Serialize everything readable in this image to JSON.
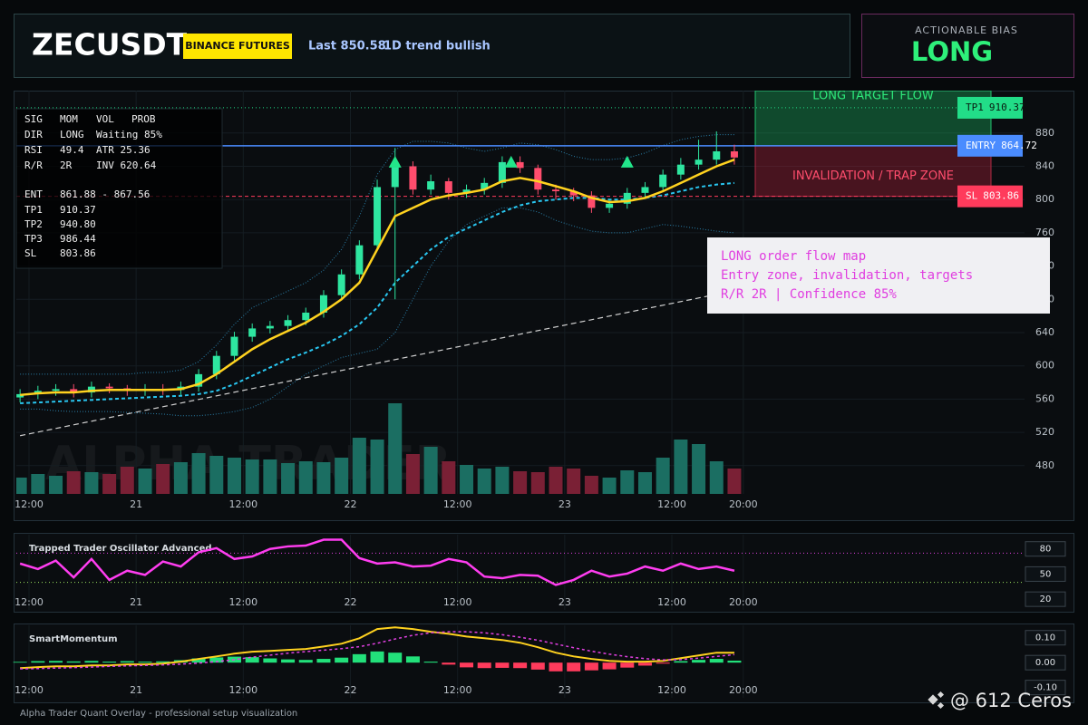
{
  "header": {
    "title": "ZECUSDT",
    "badge": "BINANCE FUTURES",
    "last": "Last 850.58",
    "trend": "1D trend bullish"
  },
  "bias": {
    "label": "ACTIONABLE BIAS",
    "value": "LONG"
  },
  "info_panel": {
    "rows": [
      [
        "SIG",
        "MOM",
        "VOL",
        "PROB"
      ],
      [
        "DIR",
        "LONG",
        "Waiting 85%"
      ],
      [
        "RSI",
        "49.4",
        "ATR 25.36"
      ],
      [
        "R/R",
        "2R",
        "INV 620.64"
      ],
      [
        "ENT",
        "861.88 - 867.56"
      ],
      [
        "TP1",
        "910.37"
      ],
      [
        "TP2",
        "940.80"
      ],
      [
        "TP3",
        "986.44"
      ],
      [
        "SL",
        "803.86"
      ]
    ]
  },
  "annotation": {
    "lines": [
      "LONG order flow map",
      "Entry zone, invalidation, targets",
      "R/R 2R | Confidence 85%"
    ]
  },
  "watermark": "ALPHA TRADER",
  "footer": "Alpha Trader Quant Overlay - professional setup visualization",
  "credit": "@ 612 Ceros",
  "chart_data": [
    {
      "type": "candlestick",
      "x": [
        11,
        13,
        15,
        17,
        19,
        21,
        23,
        25,
        27,
        29,
        31,
        33,
        35,
        37,
        39,
        41,
        43,
        45,
        47,
        49,
        51,
        53,
        55,
        57,
        59,
        61,
        63,
        65,
        67,
        69,
        71,
        73,
        75,
        77,
        79,
        81,
        83,
        85,
        87,
        89,
        91
      ],
      "open": [
        562,
        566,
        570,
        572,
        568,
        575,
        573,
        570,
        572,
        571,
        575,
        590,
        612,
        635,
        645,
        648,
        655,
        664,
        685,
        710,
        745,
        815,
        840,
        812,
        822,
        808,
        812,
        820,
        845,
        838,
        812,
        810,
        805,
        790,
        795,
        808,
        815,
        830,
        842,
        848,
        858
      ],
      "high": [
        572,
        576,
        578,
        578,
        581,
        579,
        577,
        578,
        578,
        581,
        596,
        618,
        641,
        651,
        654,
        661,
        670,
        691,
        716,
        751,
        824,
        862,
        846,
        830,
        826,
        818,
        826,
        852,
        852,
        842,
        818,
        814,
        810,
        800,
        814,
        821,
        836,
        850,
        872,
        882,
        866
      ],
      "low": [
        556,
        560,
        564,
        562,
        562,
        567,
        564,
        564,
        565,
        565,
        569,
        584,
        606,
        629,
        639,
        642,
        649,
        658,
        679,
        704,
        739,
        680,
        806,
        806,
        800,
        802,
        806,
        814,
        832,
        806,
        800,
        798,
        784,
        784,
        789,
        802,
        809,
        824,
        836,
        842,
        842
      ],
      "close": [
        566,
        570,
        572,
        568,
        575,
        573,
        570,
        572,
        571,
        575,
        590,
        612,
        635,
        645,
        648,
        655,
        664,
        685,
        710,
        745,
        815,
        840,
        812,
        822,
        808,
        812,
        820,
        845,
        838,
        812,
        810,
        805,
        790,
        795,
        808,
        815,
        830,
        842,
        848,
        858,
        850.58
      ],
      "volume": [
        18,
        22,
        20,
        25,
        24,
        22,
        30,
        28,
        33,
        35,
        45,
        42,
        40,
        38,
        38,
        34,
        36,
        35,
        40,
        62,
        60,
        100,
        44,
        52,
        36,
        32,
        28,
        30,
        25,
        24,
        30,
        28,
        20,
        18,
        26,
        24,
        40,
        60,
        55,
        36,
        28
      ],
      "volume_ylim": [
        0,
        100
      ],
      "ema": [
        565,
        567,
        568,
        568,
        570,
        571,
        571,
        571,
        571,
        572,
        578,
        590,
        605,
        620,
        632,
        642,
        652,
        665,
        680,
        700,
        740,
        780,
        790,
        800,
        805,
        808,
        812,
        822,
        826,
        822,
        816,
        810,
        802,
        797,
        798,
        802,
        810,
        820,
        830,
        840,
        848
      ],
      "slow_ma": [
        555,
        556,
        557,
        558,
        559,
        560,
        561,
        562,
        563,
        564,
        566,
        570,
        578,
        588,
        598,
        608,
        616,
        625,
        636,
        650,
        670,
        700,
        720,
        740,
        755,
        765,
        775,
        785,
        793,
        798,
        800,
        802,
        802,
        800,
        800,
        802,
        805,
        810,
        815,
        818,
        820
      ],
      "band_upper": [
        590,
        590,
        590,
        590,
        590,
        590,
        590,
        592,
        592,
        595,
        605,
        625,
        650,
        670,
        680,
        690,
        700,
        715,
        740,
        780,
        830,
        860,
        870,
        870,
        868,
        862,
        858,
        862,
        868,
        866,
        860,
        852,
        848,
        848,
        850,
        856,
        865,
        872,
        876,
        878,
        878
      ],
      "band_lower": [
        548,
        548,
        546,
        545,
        545,
        545,
        544,
        543,
        542,
        540,
        540,
        542,
        545,
        550,
        560,
        575,
        590,
        600,
        610,
        615,
        620,
        640,
        680,
        720,
        750,
        770,
        780,
        790,
        790,
        785,
        775,
        768,
        762,
        760,
        760,
        765,
        770,
        768,
        765,
        762,
        760
      ],
      "trendline": {
        "x": [
          11,
          89
        ],
        "values": [
          516,
          686
        ]
      },
      "signals": {
        "x": [
          53,
          66,
          79
        ],
        "values": [
          845,
          845,
          845
        ]
      },
      "levels": [
        {
          "label": "TP1",
          "value": 910.37,
          "color": "#22dd88"
        },
        {
          "label": "ENTRY",
          "value": 864.72,
          "color": "#4a8cff"
        },
        {
          "label": "SL",
          "value": 803.86,
          "color": "#ff3b5c"
        }
      ],
      "zones": {
        "target_label": "LONG TARGET FLOW",
        "invalidation_label": "INVALIDATION / TRAP ZONE"
      },
      "colors": {
        "up": "#2ee6a0",
        "down": "#ff4d6d",
        "volume_up": "#1b6e62",
        "volume_down": "#7a2035",
        "ema": "#ffd21f",
        "slow_ma": "#29c6f0",
        "band": "#2a7fa8",
        "trendline": "#d0d0d0",
        "signal": "#22e58a"
      },
      "xlim": [
        10.58,
        123.5
      ],
      "ylim": [
        446,
        931
      ],
      "xticks": [
        {
          "value": 12,
          "label": "12:00"
        },
        {
          "value": 24,
          "label": "21"
        },
        {
          "value": 36,
          "label": "12:00"
        },
        {
          "value": 48,
          "label": "22"
        },
        {
          "value": 60,
          "label": "12:00"
        },
        {
          "value": 72,
          "label": "23"
        },
        {
          "value": 84,
          "label": "12:00"
        },
        {
          "value": 92,
          "label": "20:00"
        }
      ],
      "yticks": [
        480,
        520,
        560,
        600,
        640,
        680,
        720,
        760,
        800,
        840,
        880
      ],
      "grid": true
    },
    {
      "type": "line",
      "title": "Trapped Trader Oscillator Advanced",
      "x": [
        11,
        13,
        15,
        17,
        19,
        21,
        23,
        25,
        27,
        29,
        31,
        33,
        35,
        37,
        39,
        41,
        43,
        45,
        47,
        49,
        51,
        53,
        55,
        57,
        59,
        61,
        63,
        65,
        67,
        69,
        71,
        73,
        75,
        77,
        79,
        81,
        83,
        85,
        87,
        89,
        91
      ],
      "values": [
        62.5,
        56,
        66,
        46,
        68,
        43,
        54,
        49,
        65,
        59,
        76,
        81,
        68,
        71,
        80,
        83,
        84,
        91,
        91,
        69,
        62.5,
        64,
        59,
        60,
        68,
        64,
        47,
        45,
        49,
        48,
        37,
        43,
        54,
        47,
        50.5,
        59,
        54,
        62.5,
        56,
        59,
        54
      ],
      "color": "#ff3df0",
      "overbought": 75,
      "oversold": 40,
      "overbought_color": "#e040e0",
      "oversold_color": "#9be15d",
      "xlim": [
        10.58,
        123.5
      ],
      "ylim": [
        18,
        97
      ],
      "xticks": [
        {
          "value": 12,
          "label": "12:00"
        },
        {
          "value": 24,
          "label": "21"
        },
        {
          "value": 36,
          "label": "12:00"
        },
        {
          "value": 48,
          "label": "22"
        },
        {
          "value": 60,
          "label": "12:00"
        },
        {
          "value": 72,
          "label": "23"
        },
        {
          "value": 84,
          "label": "12:00"
        },
        {
          "value": 92,
          "label": "20:00"
        }
      ],
      "yticks": [
        80,
        50,
        20
      ]
    },
    {
      "type": "line",
      "title": "SmartMomentum",
      "x": [
        11,
        13,
        15,
        17,
        19,
        21,
        23,
        25,
        27,
        29,
        31,
        33,
        35,
        37,
        39,
        41,
        43,
        45,
        47,
        49,
        51,
        53,
        55,
        57,
        59,
        61,
        63,
        65,
        67,
        69,
        71,
        73,
        75,
        77,
        79,
        81,
        83,
        85,
        87,
        89,
        91
      ],
      "series": [
        {
          "color": "#ffd21f",
          "values": [
            -0.022,
            -0.018,
            -0.015,
            -0.015,
            -0.011,
            -0.011,
            -0.007,
            -0.007,
            -0.004,
            0.004,
            0.015,
            0.025,
            0.036,
            0.044,
            0.047,
            0.051,
            0.055,
            0.065,
            0.076,
            0.098,
            0.135,
            0.142,
            0.135,
            0.124,
            0.116,
            0.105,
            0.098,
            0.091,
            0.08,
            0.062,
            0.04,
            0.025,
            0.015,
            0.007,
            0.004,
            0.004,
            0.007,
            0.018,
            0.029,
            0.04,
            0.04
          ]
        },
        {
          "color": "#e040e0",
          "dashed": true,
          "values": [
            -0.025,
            -0.024,
            -0.022,
            -0.02,
            -0.018,
            -0.015,
            -0.013,
            -0.011,
            -0.009,
            -0.006,
            -0.002,
            0.004,
            0.012,
            0.022,
            0.03,
            0.038,
            0.044,
            0.05,
            0.056,
            0.064,
            0.078,
            0.095,
            0.11,
            0.12,
            0.124,
            0.124,
            0.12,
            0.112,
            0.102,
            0.09,
            0.075,
            0.06,
            0.046,
            0.034,
            0.024,
            0.016,
            0.011,
            0.012,
            0.018,
            0.025,
            0.032
          ]
        }
      ],
      "histogram": {
        "values": [
          0.003,
          0.006,
          0.007,
          0.005,
          0.007,
          0.004,
          0.006,
          0.004,
          0.005,
          0.01,
          0.017,
          0.021,
          0.024,
          0.022,
          0.017,
          0.013,
          0.011,
          0.015,
          0.02,
          0.034,
          0.045,
          0.04,
          0.025,
          0.004,
          -0.008,
          -0.019,
          -0.022,
          -0.021,
          -0.022,
          -0.028,
          -0.035,
          -0.035,
          -0.031,
          -0.027,
          -0.02,
          -0.012,
          -0.004,
          0.006,
          0.011,
          0.015,
          0.008
        ],
        "up_color": "#22e07a",
        "down_color": "#ff3b5c"
      },
      "xlim": [
        10.58,
        123.5
      ],
      "ylim": [
        -0.105,
        0.15
      ],
      "xticks": [
        {
          "value": 12,
          "label": "12:00"
        },
        {
          "value": 24,
          "label": "21"
        },
        {
          "value": 36,
          "label": "12:00"
        },
        {
          "value": 48,
          "label": "22"
        },
        {
          "value": 60,
          "label": "12:00"
        },
        {
          "value": 72,
          "label": "23"
        },
        {
          "value": 84,
          "label": "12:00"
        },
        {
          "value": 92,
          "label": "20:00"
        }
      ],
      "yticks": [
        {
          "value": 0.1,
          "label": "0.10"
        },
        {
          "value": 0,
          "label": "0.00"
        },
        {
          "value": -0.1,
          "label": "-0.10"
        }
      ]
    }
  ]
}
